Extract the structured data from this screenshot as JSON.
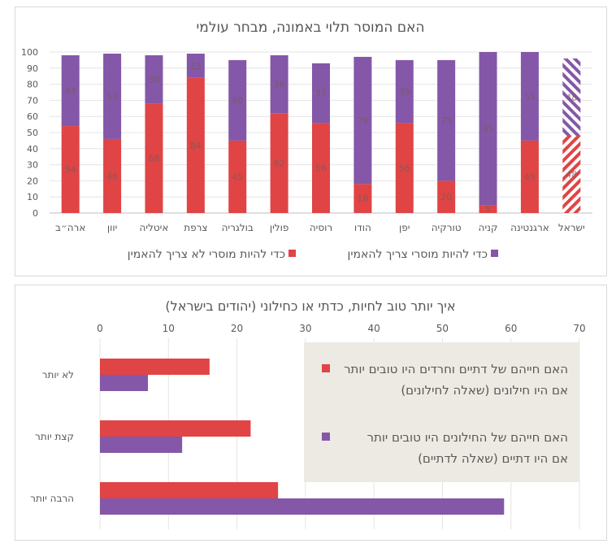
{
  "chart_data": [
    {
      "type": "bar",
      "stacked": true,
      "title": "האם המוסר תלוי באמונה, מבחר עולמי",
      "categories": [
        "ארה״ב",
        "יוון",
        "איטליה",
        "צרפת",
        "בולגריה",
        "פולין",
        "רוסיה",
        "הודו",
        "יפן",
        "טורקיה",
        "קניה",
        "ארגנטינה",
        "ישראל"
      ],
      "series": [
        {
          "name": "כדי להיות מוסרי לא צריך להאמין",
          "color": "#E04445",
          "values": [
            54,
            46,
            68,
            84,
            45,
            62,
            56,
            18,
            56,
            20,
            5,
            45,
            48
          ]
        },
        {
          "name": "כדי להיות מוסרי צריך להאמין",
          "color": "#8457A8",
          "values": [
            44,
            53,
            30,
            15,
            50,
            36,
            37,
            79,
            39,
            75,
            95,
            55,
            48
          ]
        }
      ],
      "hatched_category": "ישראל",
      "ylim": [
        0,
        100
      ],
      "yticks": [
        0,
        10,
        20,
        30,
        40,
        50,
        60,
        70,
        80,
        90,
        100
      ],
      "grid": true,
      "legend": "bottom"
    },
    {
      "type": "bar",
      "orientation": "horizontal",
      "title": "איך יותר טוב לחיות, כדתי או כחילוני (יהודים בישראל)",
      "categories": [
        "לא יותר",
        "קצת יותר",
        "הרבה יותר"
      ],
      "series": [
        {
          "name": "האם חייהם של דתיים וחרדים היו טובים יותר אם היו חילונים (שאלה לחילונים)",
          "color": "#E04445",
          "values": [
            16,
            22,
            26
          ]
        },
        {
          "name": "האם חייהם של החילונים היו טובים יותר אם היו דתיים (שאלה לדתיים)",
          "color": "#8457A8",
          "values": [
            7,
            12,
            59
          ]
        }
      ],
      "xlim": [
        0,
        70
      ],
      "xticks": [
        0,
        10,
        20,
        30,
        40,
        50,
        60,
        70
      ],
      "grid": true,
      "legend": "right, boxed"
    }
  ]
}
